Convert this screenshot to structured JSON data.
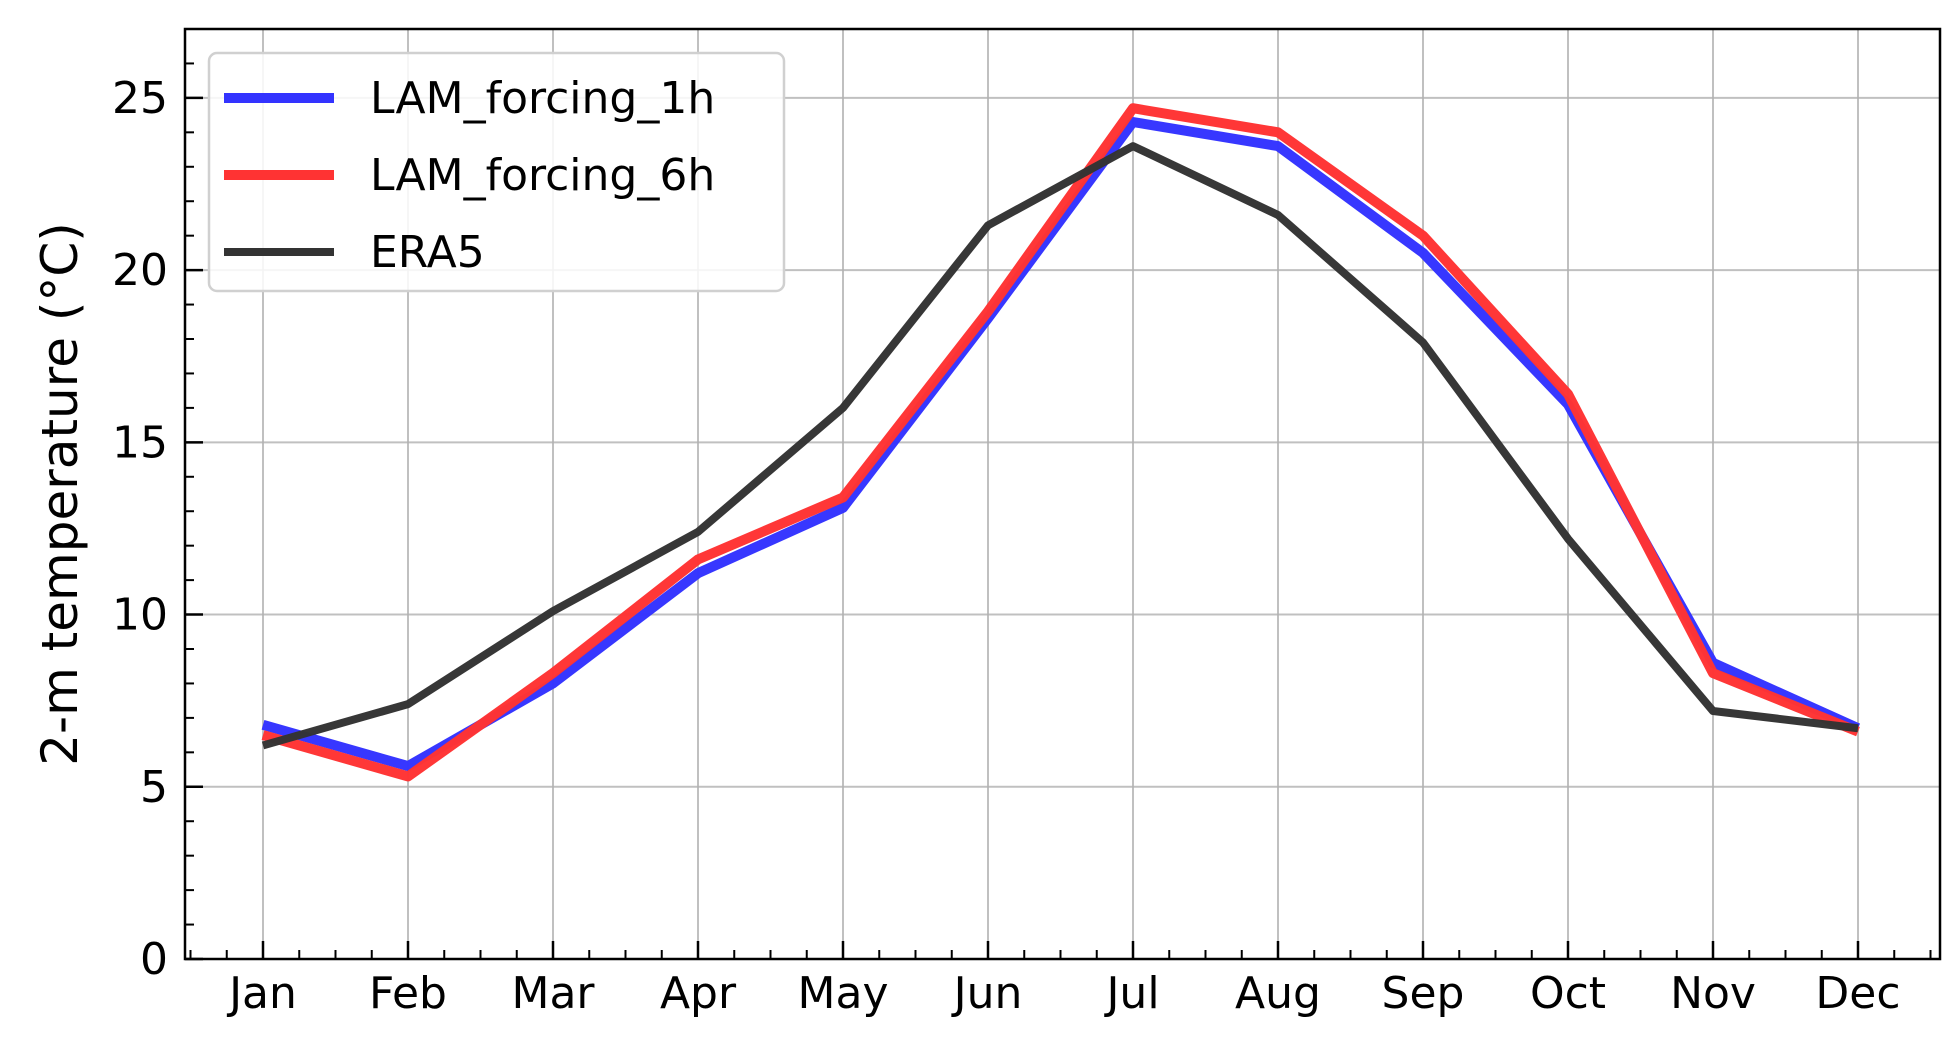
{
  "chart_data": {
    "type": "line",
    "title": "",
    "xlabel": "",
    "ylabel": "2-m temperature (°C)",
    "categories": [
      "Jan",
      "Feb",
      "Mar",
      "Apr",
      "May",
      "Jun",
      "Jul",
      "Aug",
      "Sep",
      "Oct",
      "Nov",
      "Dec"
    ],
    "yticks": [
      "0",
      "5",
      "10",
      "15",
      "20",
      "25"
    ],
    "ylim": [
      0,
      27
    ],
    "grid": true,
    "legend_position": "top-left",
    "series": [
      {
        "name": "LAM_forcing_1h",
        "color": "#3333ff",
        "values": [
          6.8,
          5.6,
          8.0,
          11.2,
          13.1,
          18.6,
          24.3,
          23.6,
          20.5,
          16.1,
          8.6,
          6.7
        ]
      },
      {
        "name": "LAM_forcing_6h",
        "color": "#ff3333",
        "values": [
          6.5,
          5.3,
          8.3,
          11.6,
          13.4,
          18.8,
          24.7,
          24.0,
          21.0,
          16.4,
          8.3,
          6.6
        ]
      },
      {
        "name": "ERA5",
        "color": "#333333",
        "values": [
          6.2,
          7.4,
          10.1,
          12.4,
          16.0,
          21.3,
          23.6,
          21.6,
          17.9,
          12.2,
          7.2,
          6.7
        ]
      }
    ]
  }
}
